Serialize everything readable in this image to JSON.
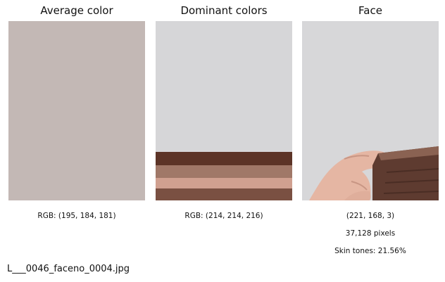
{
  "panels": {
    "average": {
      "title": "Average color",
      "color": "#c3b8b5",
      "caption": "RGB: (195, 184, 181)"
    },
    "dominant": {
      "title": "Dominant colors",
      "caption": "RGB: (214, 214, 216)",
      "bands": [
        {
          "color": "#d6d6d8",
          "share": 0.73
        },
        {
          "color": "#5c3427",
          "share": 0.075
        },
        {
          "color": "#a07868",
          "share": 0.07
        },
        {
          "color": "#d0a090",
          "share": 0.06
        },
        {
          "color": "#7a5042",
          "share": 0.065
        }
      ]
    },
    "face": {
      "title": "Face",
      "color_caption": "(221, 168, 3)",
      "pixels_caption": "37,128 pixels",
      "skin_caption": "Skin tones: 21.56%"
    }
  },
  "filename": "L___0046_faceno_0004.jpg"
}
